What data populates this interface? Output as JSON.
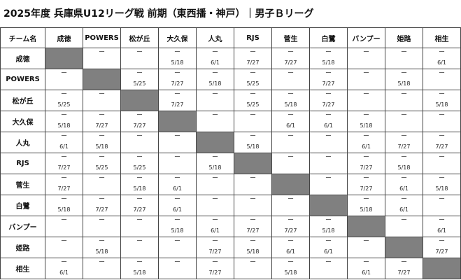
{
  "title": "2025年度 兵庫県U12リーグ戦 前期（東西播・神戸）｜男子Ｂリーグ",
  "corner_label": "チーム名",
  "teams": [
    "成徳",
    "POWERS",
    "松が丘",
    "大久保",
    "人丸",
    "RJS",
    "菅生",
    "白鷺",
    "バンプー",
    "姫路",
    "相生"
  ],
  "dash": "ー",
  "rows": [
    [
      "",
      "",
      "5/18",
      "6/1",
      "7/27",
      "7/27",
      "5/18",
      "",
      "",
      "6/1"
    ],
    [
      "",
      "5/25",
      "7/27",
      "5/18",
      "5/25",
      "",
      "7/27",
      "",
      "5/18",
      ""
    ],
    [
      "5/25",
      "",
      "7/27",
      "",
      "5/25",
      "5/18",
      "7/27",
      "",
      "",
      "5/18"
    ],
    [
      "5/18",
      "7/27",
      "7/27",
      "",
      "",
      "6/1",
      "6/1",
      "5/18",
      "",
      ""
    ],
    [
      "6/1",
      "5/18",
      "",
      "",
      "5/18",
      "",
      "",
      "6/1",
      "7/27",
      "7/27"
    ],
    [
      "7/27",
      "5/25",
      "5/25",
      "",
      "5/18",
      "",
      "",
      "7/27",
      "5/18",
      ""
    ],
    [
      "7/27",
      "",
      "5/18",
      "6/1",
      "",
      "",
      "",
      "7/27",
      "6/1",
      "5/18"
    ],
    [
      "5/18",
      "7/27",
      "7/27",
      "6/1",
      "",
      "",
      "",
      "5/18",
      "6/1",
      ""
    ],
    [
      "",
      "",
      "",
      "5/18",
      "6/1",
      "7/27",
      "7/27",
      "5/18",
      "",
      "6/1"
    ],
    [
      "",
      "5/18",
      "",
      "",
      "7/27",
      "5/18",
      "6/1",
      "6/1",
      "",
      "7/27"
    ],
    [
      "6/1",
      "",
      "5/18",
      "",
      "7/27",
      "",
      "5/18",
      "",
      "6/1",
      "7/27"
    ]
  ]
}
